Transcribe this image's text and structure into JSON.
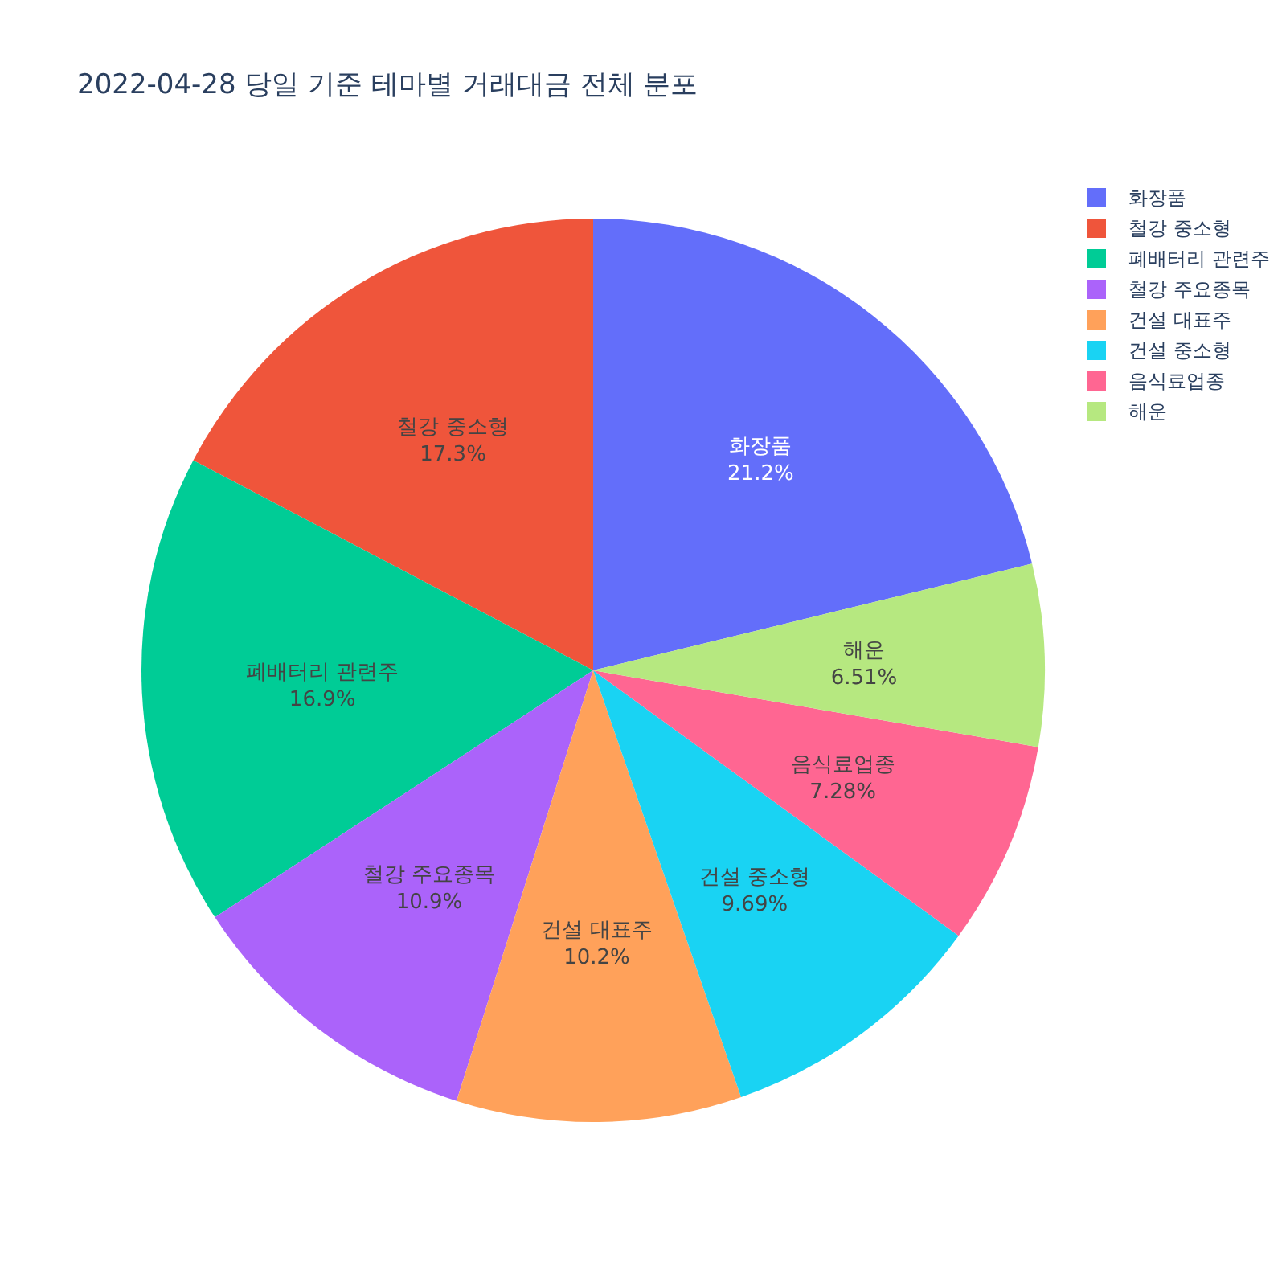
{
  "chart_data": {
    "type": "pie",
    "title": "2022-04-28 당일 기준 테마별 거래대금 전체 분포",
    "categories": [
      "화장품",
      "철강 중소형",
      "폐배터리 관련주",
      "철강 주요종목",
      "건설 대표주",
      "건설 중소형",
      "음식료업종",
      "해운"
    ],
    "values": [
      21.2,
      17.3,
      16.9,
      10.9,
      10.2,
      9.69,
      7.28,
      6.51
    ],
    "colors": [
      "#636efa",
      "#ef553b",
      "#00cc96",
      "#ab63fa",
      "#ffa15a",
      "#19d3f3",
      "#ff6692",
      "#b6e880"
    ],
    "value_labels": [
      "21.2%",
      "17.3%",
      "16.9%",
      "10.9%",
      "10.2%",
      "9.69%",
      "7.28%",
      "6.51%"
    ],
    "legend": "top right"
  }
}
